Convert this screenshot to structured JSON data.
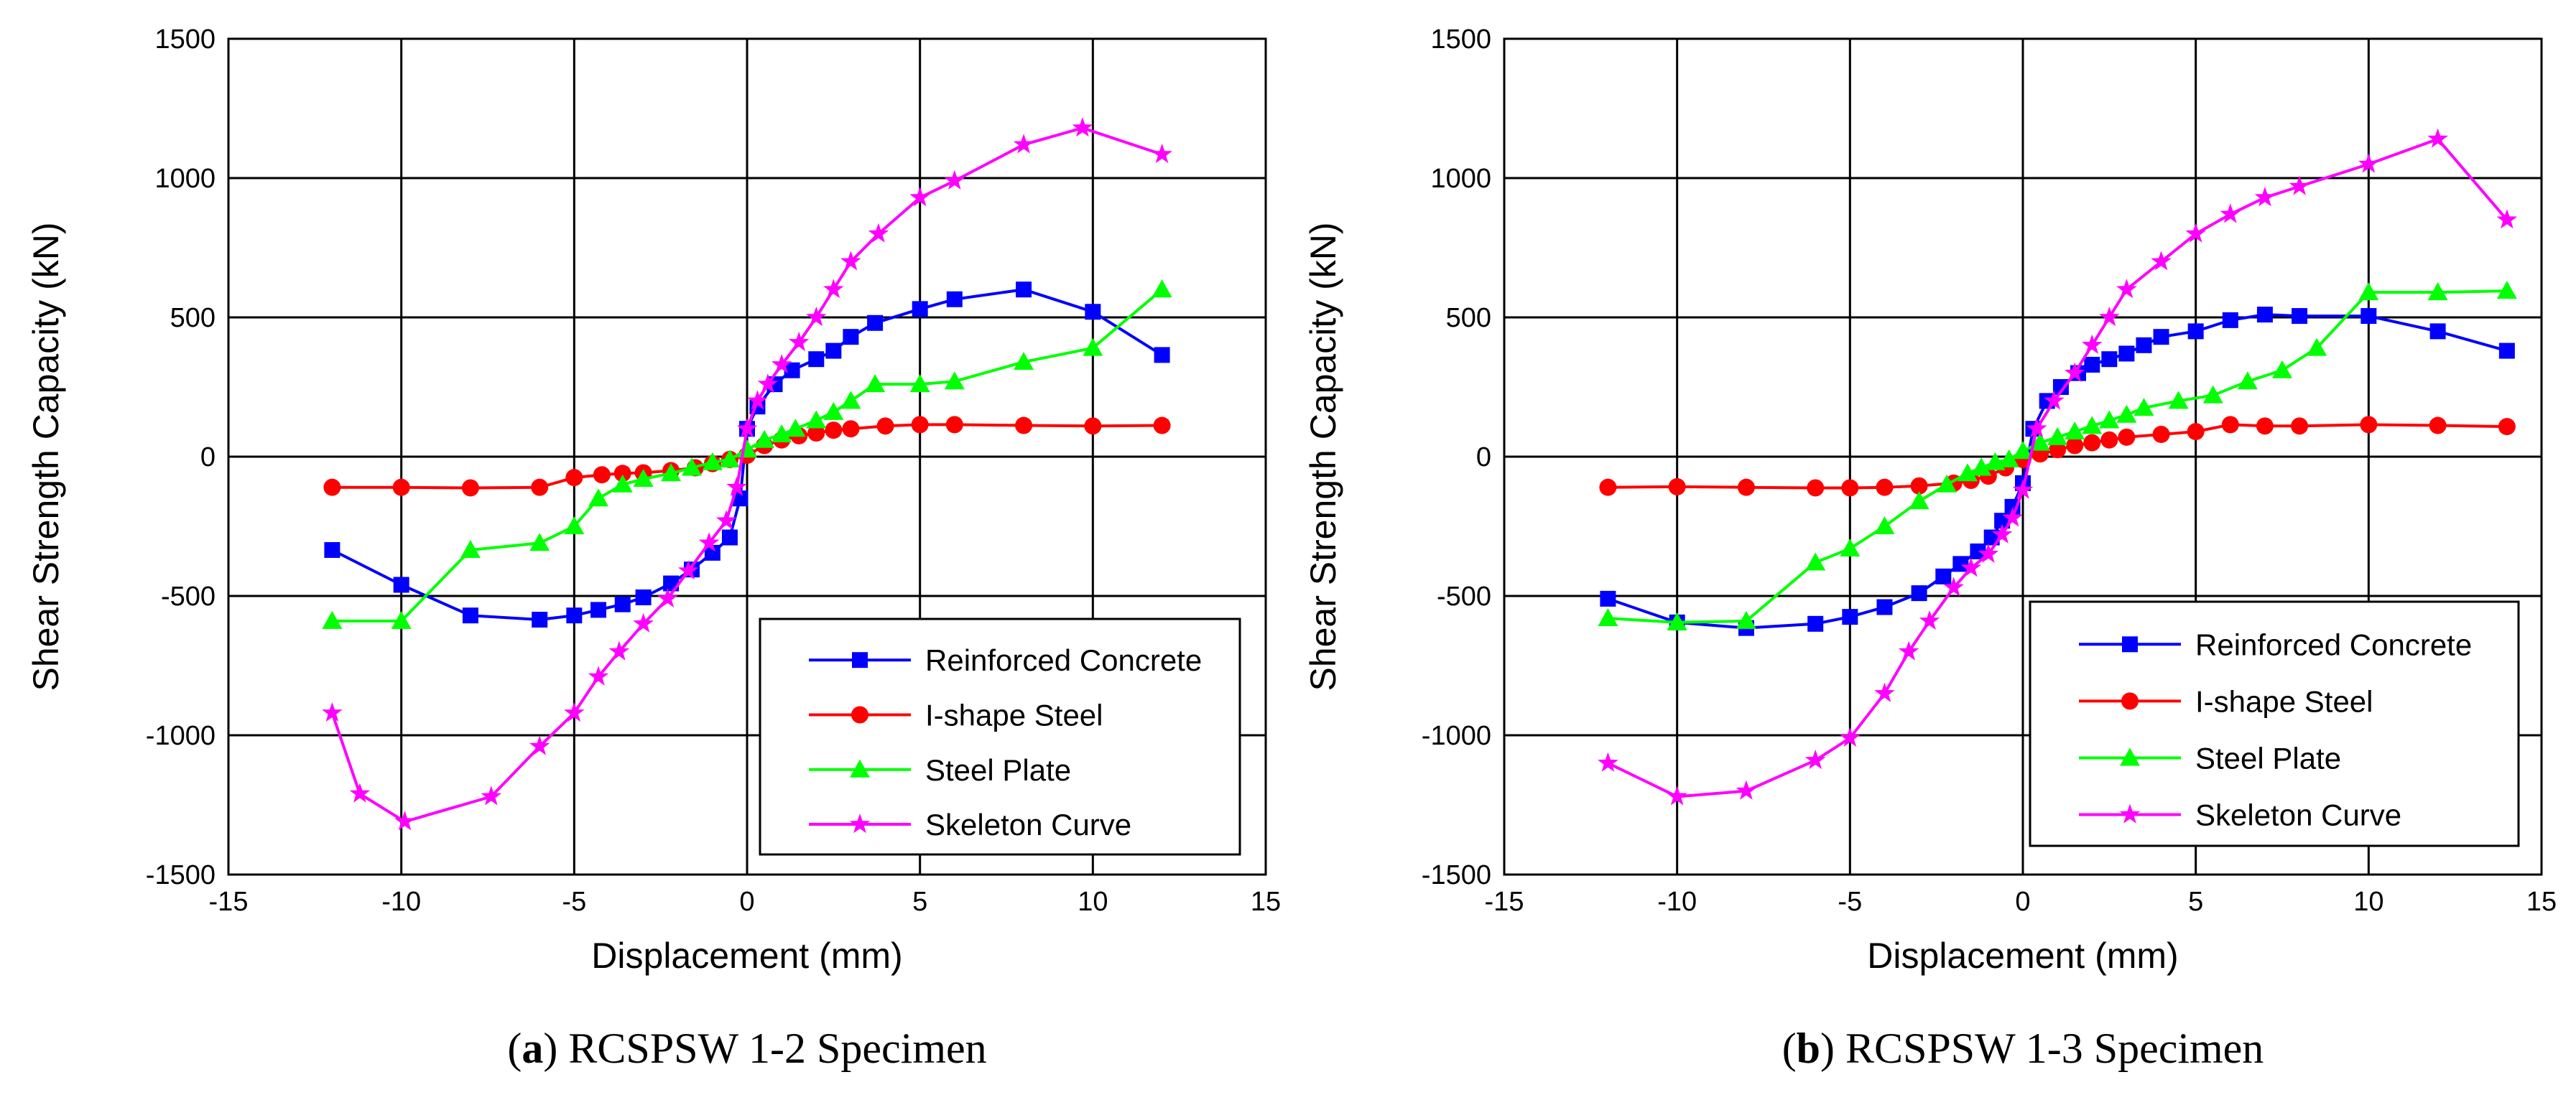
{
  "chart_data": [
    {
      "type": "line",
      "caption_letter": "a",
      "caption_text": " RCSPSW 1-2 Specimen",
      "xlabel": "Displacement (mm)",
      "ylabel": "Shear Strength Capacity (kN)",
      "xlim": [
        -15,
        15
      ],
      "ylim": [
        -1500,
        1500
      ],
      "xticks": [
        -15,
        -10,
        -5,
        0,
        5,
        10,
        15
      ],
      "yticks": [
        -1500,
        -1000,
        -500,
        0,
        500,
        1000,
        1500
      ],
      "grid": true,
      "legend_position": "bottom-right",
      "series": [
        {
          "name": "Reinforced Concrete",
          "color": "#0000ff",
          "marker": "square",
          "x": [
            -12,
            -10,
            -8,
            -6,
            -5,
            -4.3,
            -3.6,
            -3,
            -2.2,
            -1.6,
            -1,
            -0.5,
            -0.2,
            0,
            0.3,
            0.8,
            1.3,
            2,
            2.5,
            3,
            3.7,
            5,
            6,
            8,
            10,
            12
          ],
          "y": [
            -335,
            -460,
            -570,
            -585,
            -570,
            -550,
            -530,
            -505,
            -455,
            -405,
            -345,
            -290,
            -150,
            100,
            180,
            260,
            310,
            350,
            380,
            430,
            480,
            530,
            565,
            600,
            520,
            365
          ]
        },
        {
          "name": "I-shape Steel",
          "color": "#ff0000",
          "marker": "circle",
          "x": [
            -12,
            -10,
            -8,
            -6,
            -5,
            -4.2,
            -3.6,
            -3,
            -2.2,
            -1.5,
            -1,
            -0.5,
            0,
            0.5,
            1,
            1.5,
            2,
            2.5,
            3,
            4,
            5,
            6,
            8,
            10,
            12
          ],
          "y": [
            -110,
            -110,
            -112,
            -110,
            -75,
            -65,
            -60,
            -58,
            -50,
            -40,
            -25,
            -10,
            5,
            40,
            60,
            75,
            85,
            95,
            100,
            110,
            115,
            115,
            112,
            110,
            112
          ]
        },
        {
          "name": "Steel Plate",
          "color": "#00ff00",
          "marker": "triangle",
          "x": [
            -12,
            -10,
            -8,
            -6,
            -5,
            -4.3,
            -3.6,
            -3,
            -2.2,
            -1.6,
            -1,
            -0.5,
            0,
            0.5,
            1,
            1.4,
            2,
            2.5,
            3,
            3.7,
            5,
            6,
            8,
            10,
            12
          ],
          "y": [
            -590,
            -590,
            -335,
            -310,
            -250,
            -150,
            -100,
            -80,
            -60,
            -40,
            -20,
            -10,
            25,
            60,
            80,
            100,
            130,
            160,
            200,
            260,
            260,
            270,
            340,
            390,
            600
          ]
        },
        {
          "name": "Skeleton Curve",
          "color": "#ff00ff",
          "marker": "star",
          "x": [
            -12,
            -11.2,
            -9.9,
            -7.4,
            -6,
            -5,
            -4.3,
            -3.7,
            -3,
            -2.3,
            -1.7,
            -1.1,
            -0.6,
            -0.3,
            0,
            0.3,
            0.6,
            1,
            1.5,
            2,
            2.5,
            3,
            3.8,
            5,
            6,
            8,
            9.7,
            12
          ],
          "y": [
            -920,
            -1210,
            -1310,
            -1220,
            -1040,
            -920,
            -790,
            -700,
            -600,
            -510,
            -410,
            -310,
            -230,
            -110,
            100,
            200,
            260,
            330,
            410,
            500,
            600,
            700,
            800,
            930,
            990,
            1120,
            1180,
            1085
          ]
        }
      ]
    },
    {
      "type": "line",
      "caption_letter": "b",
      "caption_text": " RCSPSW 1-3 Specimen",
      "xlabel": "Displacement (mm)",
      "ylabel": "Shear Strength Capacity (kN)",
      "xlim": [
        -15,
        15
      ],
      "ylim": [
        -1500,
        1500
      ],
      "xticks": [
        -15,
        -10,
        -5,
        0,
        5,
        10,
        15
      ],
      "yticks": [
        -1500,
        -1000,
        -500,
        0,
        500,
        1000,
        1500
      ],
      "grid": true,
      "legend_position": "bottom-right",
      "series": [
        {
          "name": "Reinforced Concrete",
          "color": "#0000ff",
          "marker": "square",
          "x": [
            -12,
            -10,
            -8,
            -6,
            -5,
            -4,
            -3,
            -2.3,
            -1.8,
            -1.3,
            -0.9,
            -0.6,
            -0.3,
            0,
            0.3,
            0.7,
            1.1,
            1.6,
            2,
            2.5,
            3,
            3.5,
            4,
            5,
            6,
            7,
            8,
            10,
            12,
            14
          ],
          "y": [
            -510,
            -595,
            -615,
            -600,
            -575,
            -540,
            -490,
            -430,
            -385,
            -340,
            -290,
            -230,
            -180,
            -95,
            100,
            200,
            250,
            300,
            330,
            350,
            370,
            400,
            430,
            450,
            490,
            510,
            505,
            505,
            450,
            380
          ]
        },
        {
          "name": "I-shape Steel",
          "color": "#ff0000",
          "marker": "circle",
          "x": [
            -12,
            -10,
            -8,
            -6,
            -5,
            -4,
            -3,
            -2,
            -1.5,
            -1,
            -0.5,
            0,
            0.5,
            1,
            1.5,
            2,
            2.5,
            3,
            4,
            5,
            6,
            7,
            8,
            10,
            12,
            14
          ],
          "y": [
            -110,
            -108,
            -110,
            -112,
            -112,
            -110,
            -105,
            -95,
            -85,
            -70,
            -40,
            -10,
            10,
            25,
            40,
            50,
            60,
            70,
            80,
            90,
            115,
            110,
            110,
            115,
            112,
            108
          ]
        },
        {
          "name": "Steel Plate",
          "color": "#00ff00",
          "marker": "triangle",
          "x": [
            -12,
            -10,
            -8,
            -6,
            -5,
            -4,
            -3,
            -2.2,
            -1.6,
            -1.2,
            -0.8,
            -0.4,
            0,
            0.5,
            1,
            1.5,
            2,
            2.5,
            3,
            3.5,
            4.5,
            5.5,
            6.5,
            7.5,
            8.5,
            10,
            12,
            14
          ],
          "y": [
            -580,
            -595,
            -590,
            -380,
            -330,
            -250,
            -160,
            -100,
            -60,
            -40,
            -20,
            -10,
            20,
            50,
            70,
            90,
            110,
            130,
            150,
            175,
            200,
            220,
            270,
            310,
            390,
            590,
            590,
            595
          ]
        },
        {
          "name": "Skeleton Curve",
          "color": "#ff00ff",
          "marker": "star",
          "x": [
            -12,
            -10,
            -8,
            -6,
            -5,
            -4,
            -3.3,
            -2.7,
            -2,
            -1.5,
            -1,
            -0.6,
            -0.3,
            0,
            0.4,
            0.9,
            1.5,
            2,
            2.5,
            3,
            4,
            5,
            6,
            7,
            8,
            10,
            12,
            14
          ],
          "y": [
            -1100,
            -1220,
            -1200,
            -1090,
            -1010,
            -850,
            -700,
            -590,
            -470,
            -400,
            -350,
            -280,
            -220,
            -120,
            100,
            200,
            300,
            400,
            500,
            600,
            700,
            800,
            870,
            930,
            970,
            1050,
            1140,
            850
          ]
        }
      ]
    }
  ]
}
